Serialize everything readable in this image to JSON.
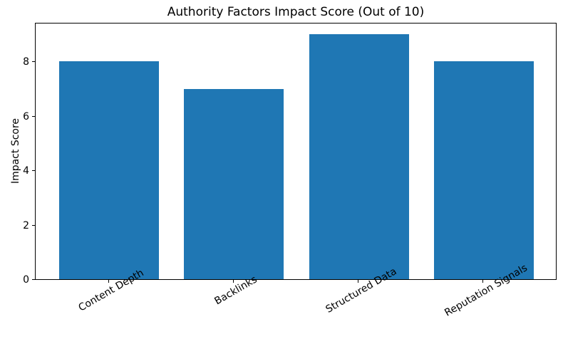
{
  "chart_data": {
    "type": "bar",
    "title": "Authority Factors Impact Score (Out of 10)",
    "ylabel": "Impact Score",
    "xlabel": "",
    "categories": [
      "Content Depth",
      "Backlinks",
      "Structured Data",
      "Reputation Signals"
    ],
    "values": [
      8,
      7,
      9,
      8
    ],
    "yticks": [
      0,
      2,
      4,
      6,
      8
    ],
    "ylim": [
      0,
      9.45
    ],
    "bar_color": "#1f77b4",
    "axis_color": "#000000",
    "background_color": "#ffffff",
    "grid": false,
    "legend": null
  }
}
